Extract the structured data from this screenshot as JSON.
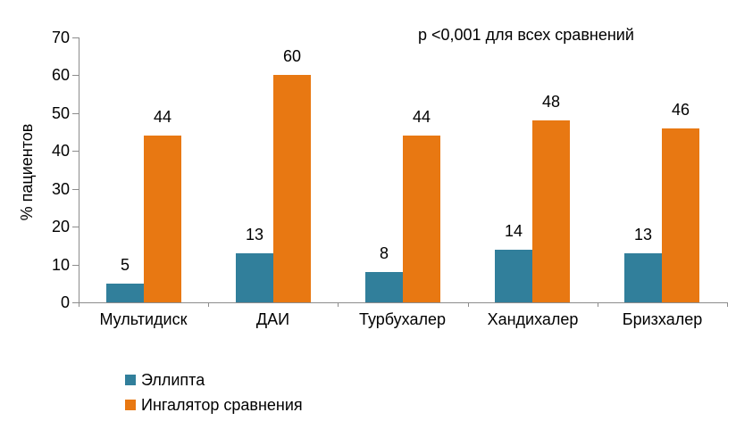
{
  "chart_data": {
    "type": "bar",
    "title": "",
    "categories": [
      "Мультидиск",
      "ДАИ",
      "Турбухалер",
      "Хандихалер",
      "Бризхалер"
    ],
    "series": [
      {
        "name": "Эллипта",
        "color": "#317F9B",
        "values": [
          5,
          13,
          8,
          14,
          13
        ]
      },
      {
        "name": "Ингалятор сравнения",
        "color": "#E87812",
        "values": [
          44,
          60,
          44,
          48,
          46
        ]
      }
    ],
    "xlabel": "",
    "ylabel": "% пациентов",
    "ylim": [
      0,
      70
    ],
    "ytick_step": 10,
    "yticks": [
      0,
      10,
      20,
      30,
      40,
      50,
      60,
      70
    ],
    "annotation": "p <0,001 для всех сравнений",
    "legend_position": "bottom-left",
    "grid": false,
    "axis_color": "#8C8C8C",
    "text_color": "#000000",
    "background_color": "#FFFFFF"
  }
}
